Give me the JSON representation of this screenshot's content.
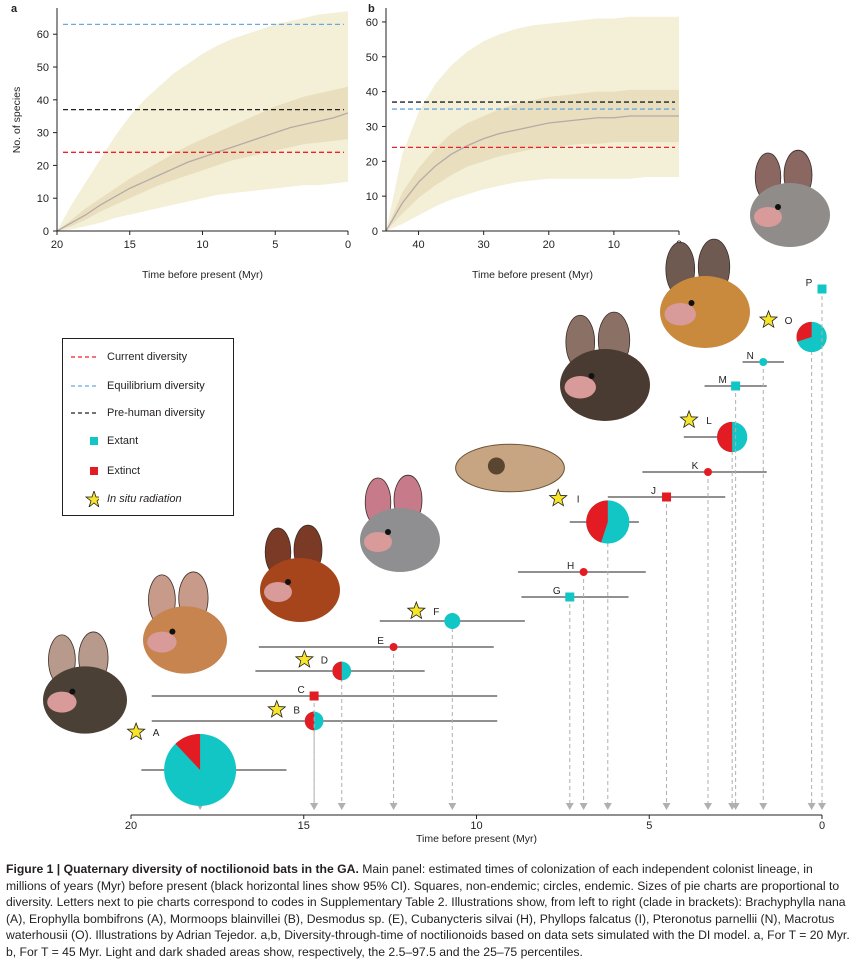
{
  "colors": {
    "current": "#e8232a",
    "equilibrium": "#6aa9de",
    "prehuman": "#231f20",
    "extant": "#12c6c6",
    "extinct": "#e31b23",
    "star": "#f6e52a",
    "shade_light": "#f4efd7",
    "shade_dark": "#e9dfbf",
    "median": "#b5aaa8"
  },
  "chart_data": [
    {
      "id": "a",
      "panel_label": "a",
      "type": "area",
      "xlabel": "Time before present (Myr)",
      "ylabel": "No. of species",
      "xlim": [
        20,
        0
      ],
      "ylim": [
        0,
        68
      ],
      "xticks": [
        20,
        15,
        10,
        5,
        0
      ],
      "yticks": [
        0,
        10,
        20,
        30,
        40,
        50,
        60
      ],
      "x": [
        20,
        19,
        18,
        17,
        16,
        15,
        14,
        13,
        12,
        11,
        10,
        9,
        8,
        7,
        6,
        5,
        4,
        3,
        2,
        1,
        0
      ],
      "median": [
        0,
        2.5,
        5,
        8,
        10.5,
        13,
        15,
        17,
        19,
        21,
        22.5,
        24,
        25.5,
        27,
        28.5,
        30,
        31.5,
        32.5,
        33.5,
        34.5,
        36
      ],
      "p25": [
        0,
        1.5,
        3.5,
        6,
        8,
        10,
        12,
        14,
        15.5,
        17,
        18.5,
        20,
        21.5,
        22.5,
        23.5,
        24.5,
        25.5,
        26.5,
        27,
        27.5,
        28
      ],
      "p75": [
        0,
        3.5,
        7,
        10,
        13,
        16,
        18.5,
        21,
        23.5,
        26,
        28,
        30,
        32,
        34,
        36,
        38,
        39.5,
        41,
        42,
        43,
        44
      ],
      "p2_5": [
        0,
        0.5,
        1.5,
        2.5,
        4,
        5,
        6,
        7,
        8,
        9,
        10,
        11,
        11.5,
        12,
        12.5,
        13,
        13.5,
        14,
        14,
        14.5,
        15
      ],
      "p97_5": [
        0,
        8,
        15,
        22,
        29,
        35,
        40,
        44,
        48,
        51,
        54,
        56.5,
        58.5,
        60,
        61.5,
        63,
        64,
        65,
        66,
        66.5,
        67
      ],
      "current_diversity": 24,
      "equilibrium_diversity": 63,
      "prehuman_diversity": 37
    },
    {
      "id": "b",
      "panel_label": "b",
      "type": "area",
      "xlabel": "Time before present (Myr)",
      "ylabel": "",
      "xlim": [
        45,
        0
      ],
      "ylim": [
        0,
        64
      ],
      "xticks": [
        40,
        30,
        20,
        10,
        0
      ],
      "yticks": [
        0,
        10,
        20,
        30,
        40,
        50,
        60
      ],
      "x": [
        45,
        42.5,
        40,
        37.5,
        35,
        32.5,
        30,
        27.5,
        25,
        22.5,
        20,
        17.5,
        15,
        12.5,
        10,
        7.5,
        5,
        2.5,
        0
      ],
      "median": [
        0,
        8,
        14,
        18.5,
        22,
        24.5,
        26.5,
        28,
        29,
        30,
        31,
        31.5,
        32,
        32.5,
        32.5,
        33,
        33,
        33,
        33
      ],
      "p25": [
        0,
        5,
        9.5,
        13,
        16,
        18.5,
        20,
        21.5,
        22.5,
        23.5,
        24,
        24.5,
        25,
        25,
        25.5,
        25.5,
        25.5,
        25.5,
        25.5
      ],
      "p75": [
        0,
        11,
        18,
        23.5,
        28,
        31,
        33,
        35,
        36.5,
        37.5,
        38.5,
        39,
        39.5,
        40,
        40,
        40.5,
        40.5,
        40.5,
        40.5
      ],
      "p2_5": [
        0,
        2,
        4.5,
        7,
        9,
        10.5,
        12,
        13,
        14,
        14.5,
        15,
        15,
        15,
        15,
        15,
        15,
        15.5,
        15.5,
        15.5
      ],
      "p97_5": [
        0,
        22,
        34,
        42,
        47.5,
        51.5,
        54.5,
        56.5,
        58,
        59,
        59.5,
        60,
        60.5,
        61,
        61,
        61.5,
        61.5,
        61.5,
        61.5
      ],
      "current_diversity": 24,
      "equilibrium_diversity": 35,
      "prehuman_diversity": 37
    },
    {
      "id": "main",
      "type": "scatter",
      "xlabel": "Time before present (Myr)",
      "xlim": [
        20,
        0
      ],
      "xticks": [
        20,
        15,
        10,
        5,
        0
      ],
      "note_encoding": "",
      "lineages": [
        {
          "code": "A",
          "time": 18.0,
          "ci": [
            19.7,
            15.5
          ],
          "shape": "pie",
          "extinct_frac": 0.12,
          "size": 1.0,
          "radiation": true
        },
        {
          "code": "B",
          "time": 14.7,
          "ci": [
            19.4,
            9.4
          ],
          "shape": "pie",
          "extinct_frac": 0.5,
          "size": 0.26,
          "radiation": true
        },
        {
          "code": "C",
          "time": 14.7,
          "ci": [
            19.4,
            9.4
          ],
          "shape": "square",
          "status": "extinct",
          "radiation": false
        },
        {
          "code": "D",
          "time": 13.9,
          "ci": [
            16.4,
            11.5
          ],
          "shape": "pie",
          "extinct_frac": 0.5,
          "size": 0.26,
          "radiation": true
        },
        {
          "code": "E",
          "time": 12.4,
          "ci": [
            16.3,
            9.5
          ],
          "shape": "circle",
          "status": "extinct",
          "radiation": false
        },
        {
          "code": "F",
          "time": 10.7,
          "ci": [
            12.8,
            8.6
          ],
          "shape": "circle",
          "status": "extant",
          "size": 0.28,
          "radiation": true
        },
        {
          "code": "G",
          "time": 7.3,
          "ci": [
            8.7,
            5.6
          ],
          "shape": "square",
          "status": "extant",
          "radiation": false
        },
        {
          "code": "H",
          "time": 6.9,
          "ci": [
            8.8,
            5.1
          ],
          "shape": "circle",
          "status": "extinct",
          "radiation": false
        },
        {
          "code": "I",
          "time": 6.2,
          "ci": [
            7.3,
            5.3
          ],
          "shape": "pie",
          "extinct_frac": 0.45,
          "size": 0.6,
          "radiation": true
        },
        {
          "code": "J",
          "time": 4.5,
          "ci": [
            6.2,
            2.8
          ],
          "shape": "square",
          "status": "extinct",
          "radiation": false
        },
        {
          "code": "K",
          "time": 3.3,
          "ci": [
            5.2,
            1.6
          ],
          "shape": "circle",
          "status": "extinct",
          "radiation": false
        },
        {
          "code": "L",
          "time": 2.6,
          "ci": [
            4.0,
            2.6
          ],
          "shape": "pie",
          "extinct_frac": 0.5,
          "size": 0.42,
          "radiation": true
        },
        {
          "code": "M",
          "time": 2.5,
          "ci": [
            3.4,
            1.6
          ],
          "shape": "square",
          "status": "extant",
          "radiation": false
        },
        {
          "code": "N",
          "time": 1.7,
          "ci": [
            2.3,
            1.1
          ],
          "shape": "circle",
          "status": "extant",
          "radiation": false
        },
        {
          "code": "O",
          "time": 0.3,
          "ci": [
            0.6,
            0.0
          ],
          "shape": "pie",
          "extinct_frac": 0.3,
          "size": 0.42,
          "radiation": true
        },
        {
          "code": "P",
          "time": 0.0,
          "ci": [
            0.1,
            0.0
          ],
          "shape": "square",
          "status": "extant",
          "radiation": false
        }
      ]
    }
  ],
  "legend": {
    "items": [
      {
        "label": "Current diversity",
        "kind": "current-dashed"
      },
      {
        "label": "Equilibrium diversity",
        "kind": "equilibrium-dashed"
      },
      {
        "label": "Pre-human diversity",
        "kind": "prehuman-dashed"
      },
      {
        "label": "Extant",
        "kind": "extant-square"
      },
      {
        "label": "Extinct",
        "kind": "extinct-square"
      },
      {
        "label": "In situ radiation",
        "kind": "star"
      }
    ]
  },
  "illustrations": [
    "bat-illustration-1",
    "bat-illustration-2",
    "bat-illustration-3",
    "bat-illustration-4",
    "bat-skull-illustration",
    "bat-illustration-5",
    "bat-illustration-6",
    "bat-illustration-7"
  ],
  "caption": {
    "title": "Figure 1 | Quaternary diversity of noctilionoid bats in the GA.",
    "body": " Main panel: estimated times of colonization of each independent colonist lineage, in millions of years (Myr) before present (black horizontal lines show 95% CI). Squares, non-endemic; circles, endemic. Sizes of pie charts are proportional to diversity. Letters next to pie charts correspond to codes in Supplementary Table 2. Illustrations show, from left to right (clade in brackets): Brachyphylla nana (A), Erophylla bombifrons (A), Mormoops blainvillei (B), Desmodus sp. (E), Cubanycteris silvai (H), Phyllops falcatus (I), Pteronotus parnellii (N), Macrotus waterhousii (O). Illustrations by Adrian Tejedor. a,b, Diversity-through-time of noctilionoids based on data sets simulated with the DI model. a, For T = 20 Myr. b, For T = 45 Myr. Light and dark shaded areas show, respectively, the 2.5–97.5 and the 25–75 percentiles."
  }
}
